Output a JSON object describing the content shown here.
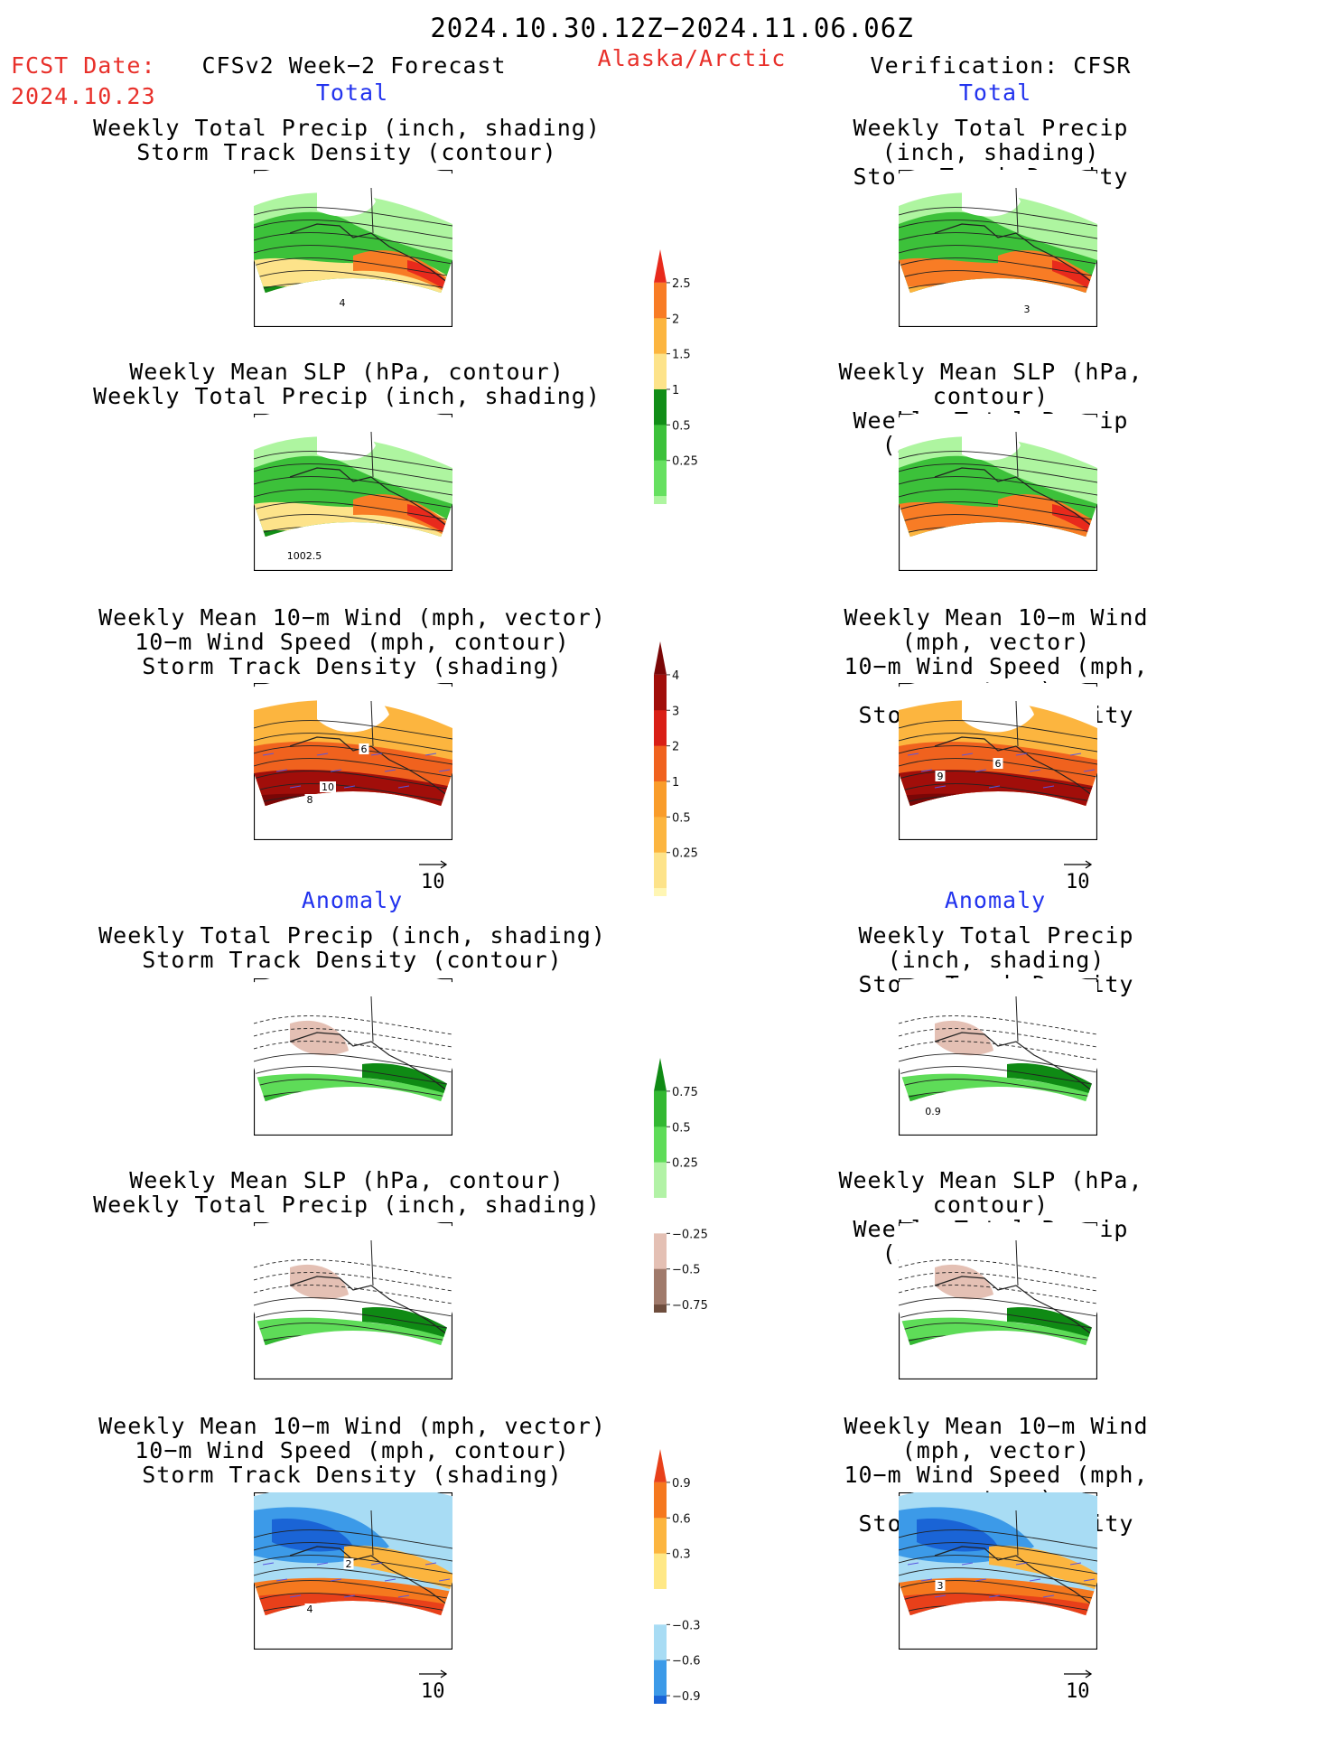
{
  "header": {
    "valid_period": "2024.10.30.12Z−2024.11.06.06Z",
    "fcst_label": "FCST Date:",
    "fcst_date": "2024.10.23",
    "model": "CFSv2 Week−2 Forecast",
    "region": "Alaska/Arctic",
    "verification": "Verification: CFSR"
  },
  "sections": {
    "total": "Total",
    "anomaly": "Anomaly"
  },
  "panel_titles": {
    "precip_storm": [
      "Weekly Total Precip (inch, shading)",
      "Storm Track Density (contour)"
    ],
    "slp_precip": [
      "Weekly Mean SLP (hPa, contour)",
      "Weekly Total Precip (inch, shading)"
    ],
    "wind_storm": [
      "Weekly Mean 10−m Wind (mph, vector)",
      "10−m Wind Speed (mph, contour)",
      "Storm Track Density (shading)"
    ]
  },
  "map_labels": {
    "fc_precip_storm_total": "4",
    "vf_precip_storm_total": "3",
    "fc_slp_precip_total": "1002.5",
    "fc_wind_total_a": "10",
    "fc_wind_total_b": "8",
    "fc_wind_total_c": "6",
    "vf_wind_total_a": "9",
    "vf_wind_total_b": "6",
    "vf_precip_storm_anom": "0.9",
    "fc_wind_anom_a": "2",
    "fc_wind_anom_b": "4",
    "vf_wind_anom": "3"
  },
  "vector_reference": "10",
  "colors": {
    "text_red": "#e8302a",
    "text_blue": "#2233ee",
    "precip_total": [
      "#aef5a0",
      "#66e060",
      "#3cc13a",
      "#118d17",
      "#fde38a",
      "#fcb53f",
      "#f87c25",
      "#e82a1c"
    ],
    "storm_total": [
      "#fff6b4",
      "#fde38a",
      "#fcb53f",
      "#f99c2a",
      "#f0621e",
      "#d91f16",
      "#a10e0a",
      "#7a0606"
    ],
    "precip_anom": [
      "#6e4d3d",
      "#a07a6b",
      "#e4c0b4",
      "#ffffff",
      "#b2f2a6",
      "#5edc58",
      "#33b832",
      "#0f8a14"
    ],
    "storm_anom": [
      "#1a64d6",
      "#3c9ae8",
      "#a8dcf4",
      "#ffffff",
      "#ffe886",
      "#fcb53f",
      "#f5781e",
      "#e8401a"
    ],
    "land_outline": "#222222",
    "wind_vector": "#5a55e0"
  },
  "colorbars": {
    "precip_total": [
      "2.5",
      "2",
      "1.5",
      "1",
      "0.5",
      "0.25"
    ],
    "storm_total": [
      "4",
      "3",
      "2",
      "1",
      "0.5",
      "0.25"
    ],
    "precip_anom": [
      "0.75",
      "0.5",
      "0.25",
      "−0.25",
      "−0.5",
      "−0.75"
    ],
    "storm_anom": [
      "0.9",
      "0.6",
      "0.3",
      "−0.3",
      "−0.6",
      "−0.9"
    ]
  }
}
